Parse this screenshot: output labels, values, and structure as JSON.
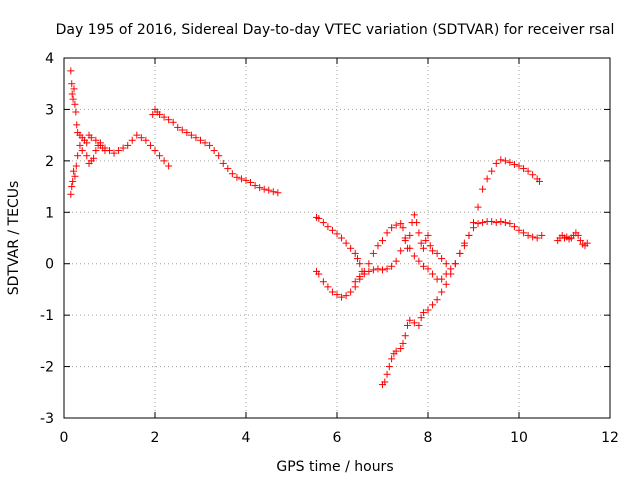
{
  "chart_data": {
    "type": "scatter",
    "title": "Day 195 of 2016, Sidereal Day-to-day VTEC variation (SDTVAR) for receiver rsal",
    "xlabel": "GPS time / hours",
    "ylabel": "SDTVAR / TECUs",
    "xlim": [
      0,
      12
    ],
    "ylim": [
      -3,
      4
    ],
    "xticks": [
      "0",
      "2",
      "4",
      "6",
      "8",
      "10",
      "12"
    ],
    "yticks": [
      "-3",
      "-2",
      "-1",
      "0",
      "1",
      "2",
      "3",
      "4"
    ],
    "grid": true,
    "marker": "plus",
    "colors": {
      "series": "#ff0000"
    },
    "series": [
      {
        "points": [
          [
            0.15,
            3.75
          ],
          [
            0.17,
            3.5
          ],
          [
            0.18,
            3.3
          ],
          [
            0.2,
            3.2
          ],
          [
            0.22,
            3.4
          ],
          [
            0.24,
            3.1
          ],
          [
            0.26,
            2.95
          ],
          [
            0.28,
            2.7
          ],
          [
            0.3,
            2.55
          ],
          [
            0.35,
            2.5
          ],
          [
            0.4,
            2.45
          ],
          [
            0.5,
            2.35
          ],
          [
            0.55,
            2.5
          ],
          [
            0.6,
            2.45
          ],
          [
            0.7,
            2.4
          ],
          [
            0.8,
            2.3
          ],
          [
            0.9,
            2.25
          ],
          [
            1.0,
            2.2
          ],
          [
            1.1,
            2.15
          ],
          [
            1.2,
            2.2
          ],
          [
            1.3,
            2.25
          ],
          [
            1.4,
            2.3
          ],
          [
            1.5,
            2.4
          ],
          [
            1.6,
            2.5
          ],
          [
            1.7,
            2.45
          ],
          [
            1.8,
            2.4
          ],
          [
            1.9,
            2.3
          ],
          [
            2.0,
            2.2
          ],
          [
            2.1,
            2.1
          ],
          [
            2.2,
            2.0
          ],
          [
            2.3,
            1.9
          ]
        ]
      },
      {
        "points": [
          [
            0.15,
            1.35
          ],
          [
            0.17,
            1.5
          ],
          [
            0.19,
            1.6
          ],
          [
            0.21,
            1.8
          ],
          [
            0.24,
            1.7
          ],
          [
            0.27,
            1.9
          ],
          [
            0.3,
            2.1
          ],
          [
            0.35,
            2.3
          ],
          [
            0.4,
            2.2
          ],
          [
            0.45,
            2.4
          ],
          [
            0.5,
            2.1
          ],
          [
            0.55,
            1.95
          ],
          [
            0.6,
            2.0
          ],
          [
            0.65,
            2.05
          ],
          [
            0.7,
            2.2
          ],
          [
            0.75,
            2.3
          ],
          [
            0.8,
            2.35
          ],
          [
            0.85,
            2.25
          ],
          [
            0.9,
            2.2
          ]
        ]
      },
      {
        "points": [
          [
            1.95,
            2.9
          ],
          [
            2.0,
            3.0
          ],
          [
            2.05,
            2.95
          ],
          [
            2.1,
            2.9
          ],
          [
            2.2,
            2.85
          ],
          [
            2.3,
            2.8
          ],
          [
            2.4,
            2.75
          ],
          [
            2.5,
            2.65
          ],
          [
            2.6,
            2.6
          ],
          [
            2.7,
            2.55
          ],
          [
            2.8,
            2.5
          ],
          [
            2.9,
            2.45
          ],
          [
            3.0,
            2.4
          ],
          [
            3.1,
            2.35
          ],
          [
            3.2,
            2.3
          ],
          [
            3.3,
            2.2
          ],
          [
            3.4,
            2.1
          ],
          [
            3.5,
            1.95
          ],
          [
            3.6,
            1.85
          ],
          [
            3.7,
            1.75
          ],
          [
            3.8,
            1.68
          ],
          [
            3.9,
            1.65
          ],
          [
            4.0,
            1.62
          ],
          [
            4.1,
            1.58
          ],
          [
            4.2,
            1.52
          ],
          [
            4.3,
            1.48
          ],
          [
            4.4,
            1.45
          ],
          [
            4.5,
            1.43
          ],
          [
            4.6,
            1.4
          ],
          [
            4.7,
            1.38
          ]
        ]
      },
      {
        "points": [
          [
            5.55,
            0.9
          ],
          [
            5.6,
            0.88
          ],
          [
            5.7,
            0.8
          ],
          [
            5.8,
            0.72
          ],
          [
            5.9,
            0.65
          ],
          [
            6.0,
            0.58
          ],
          [
            6.1,
            0.5
          ],
          [
            6.2,
            0.4
          ],
          [
            6.3,
            0.3
          ],
          [
            6.4,
            0.2
          ],
          [
            6.45,
            0.1
          ],
          [
            6.5,
            0.0
          ],
          [
            6.55,
            -0.15
          ]
        ]
      },
      {
        "points": [
          [
            5.55,
            -0.15
          ],
          [
            5.6,
            -0.2
          ],
          [
            5.7,
            -0.35
          ],
          [
            5.8,
            -0.45
          ],
          [
            5.9,
            -0.55
          ],
          [
            6.0,
            -0.6
          ],
          [
            6.1,
            -0.65
          ],
          [
            6.2,
            -0.62
          ],
          [
            6.3,
            -0.55
          ],
          [
            6.4,
            -0.45
          ],
          [
            6.5,
            -0.3
          ],
          [
            6.6,
            -0.15
          ],
          [
            6.7,
            0.0
          ],
          [
            6.8,
            0.2
          ],
          [
            6.9,
            0.35
          ],
          [
            7.0,
            0.45
          ],
          [
            7.1,
            0.6
          ],
          [
            7.2,
            0.7
          ],
          [
            7.3,
            0.75
          ],
          [
            7.4,
            0.78
          ],
          [
            7.45,
            0.7
          ],
          [
            7.5,
            0.5
          ],
          [
            7.55,
            0.3
          ],
          [
            7.6,
            0.55
          ],
          [
            7.65,
            0.8
          ],
          [
            7.7,
            0.95
          ],
          [
            7.75,
            0.8
          ],
          [
            7.8,
            0.6
          ],
          [
            7.85,
            0.4
          ],
          [
            7.9,
            0.3
          ],
          [
            7.95,
            0.45
          ],
          [
            8.0,
            0.55
          ],
          [
            8.05,
            0.35
          ],
          [
            8.1,
            0.25
          ],
          [
            8.2,
            0.2
          ],
          [
            8.3,
            0.1
          ],
          [
            8.4,
            0.0
          ]
        ]
      },
      {
        "points": [
          [
            6.4,
            -0.35
          ],
          [
            6.5,
            -0.25
          ],
          [
            6.6,
            -0.2
          ],
          [
            6.7,
            -0.15
          ],
          [
            6.8,
            -0.12
          ],
          [
            6.9,
            -0.1
          ],
          [
            7.0,
            -0.12
          ],
          [
            7.1,
            -0.1
          ],
          [
            7.2,
            -0.05
          ],
          [
            7.3,
            0.05
          ],
          [
            7.4,
            0.25
          ],
          [
            7.5,
            0.45
          ],
          [
            7.6,
            0.3
          ],
          [
            7.7,
            0.15
          ],
          [
            7.8,
            0.05
          ],
          [
            7.9,
            -0.05
          ],
          [
            8.0,
            -0.1
          ],
          [
            8.1,
            -0.2
          ],
          [
            8.2,
            -0.3
          ],
          [
            8.3,
            -0.3
          ],
          [
            8.4,
            -0.2
          ],
          [
            8.5,
            -0.1
          ],
          [
            8.6,
            0.0
          ],
          [
            8.7,
            0.2
          ],
          [
            8.8,
            0.4
          ],
          [
            8.9,
            0.55
          ],
          [
            9.0,
            0.7
          ],
          [
            9.1,
            0.78
          ],
          [
            9.2,
            0.8
          ],
          [
            9.3,
            0.82
          ],
          [
            9.4,
            0.82
          ],
          [
            9.5,
            0.8
          ],
          [
            9.6,
            0.82
          ],
          [
            9.7,
            0.8
          ],
          [
            9.8,
            0.78
          ],
          [
            9.9,
            0.72
          ],
          [
            10.0,
            0.65
          ],
          [
            10.1,
            0.6
          ],
          [
            10.2,
            0.55
          ],
          [
            10.3,
            0.52
          ],
          [
            10.4,
            0.5
          ],
          [
            10.5,
            0.55
          ]
        ]
      },
      {
        "points": [
          [
            7.0,
            -2.35
          ],
          [
            7.05,
            -2.3
          ],
          [
            7.1,
            -2.15
          ],
          [
            7.15,
            -2.0
          ],
          [
            7.2,
            -1.85
          ],
          [
            7.25,
            -1.75
          ],
          [
            7.3,
            -1.7
          ],
          [
            7.4,
            -1.65
          ],
          [
            7.45,
            -1.55
          ],
          [
            7.5,
            -1.4
          ],
          [
            7.55,
            -1.2
          ],
          [
            7.6,
            -1.1
          ],
          [
            7.7,
            -1.15
          ],
          [
            7.8,
            -1.2
          ],
          [
            7.85,
            -1.05
          ],
          [
            7.9,
            -0.95
          ],
          [
            8.0,
            -0.9
          ],
          [
            8.1,
            -0.8
          ],
          [
            8.2,
            -0.7
          ],
          [
            8.3,
            -0.55
          ],
          [
            8.4,
            -0.4
          ],
          [
            8.5,
            -0.2
          ],
          [
            8.6,
            0.0
          ],
          [
            8.7,
            0.2
          ],
          [
            8.8,
            0.35
          ],
          [
            8.9,
            0.55
          ],
          [
            9.0,
            0.8
          ],
          [
            9.1,
            1.1
          ],
          [
            9.2,
            1.45
          ],
          [
            9.3,
            1.65
          ],
          [
            9.4,
            1.8
          ],
          [
            9.5,
            1.95
          ],
          [
            9.6,
            2.02
          ],
          [
            9.7,
            2.0
          ],
          [
            9.8,
            1.97
          ],
          [
            9.9,
            1.93
          ],
          [
            10.0,
            1.9
          ],
          [
            10.1,
            1.85
          ],
          [
            10.2,
            1.8
          ],
          [
            10.3,
            1.73
          ],
          [
            10.4,
            1.65
          ],
          [
            10.45,
            1.6
          ]
        ]
      },
      {
        "points": [
          [
            10.85,
            0.45
          ],
          [
            10.9,
            0.5
          ],
          [
            10.95,
            0.55
          ],
          [
            11.0,
            0.5
          ],
          [
            11.05,
            0.52
          ],
          [
            11.1,
            0.48
          ],
          [
            11.15,
            0.5
          ],
          [
            11.2,
            0.55
          ],
          [
            11.25,
            0.6
          ],
          [
            11.3,
            0.55
          ],
          [
            11.35,
            0.45
          ],
          [
            11.4,
            0.38
          ],
          [
            11.45,
            0.35
          ],
          [
            11.5,
            0.4
          ]
        ]
      }
    ]
  }
}
